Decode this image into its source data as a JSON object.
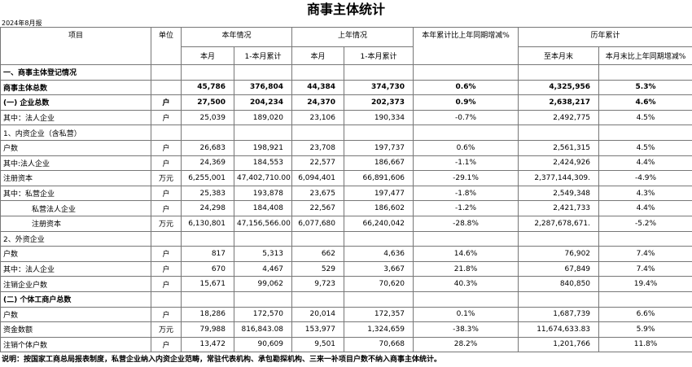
{
  "title": "商事主体统计",
  "report_period": "2024年8月报",
  "header": {
    "top": [
      "项目",
      "单位",
      "本年情况",
      "上年情况",
      "本年累计比上年同期增减%",
      "历年累计"
    ],
    "sub": [
      "本月",
      "1-本月累计",
      "本月",
      "1-本月累计",
      "至本月末",
      "本月末比上年同期增减%"
    ]
  },
  "rows": [
    [
      "一、商事主体登记情况"
    ],
    [
      "商事主体总数",
      null,
      "45,786",
      "376,804",
      "44,384",
      "374,730",
      "0.6%",
      "4,325,956",
      "5.3%"
    ],
    [
      "(一) 企业总数",
      "户",
      "27,500",
      "204,234",
      "24,370",
      "202,373",
      "0.9%",
      "2,638,217",
      "4.6%"
    ],
    [
      "其中：法人企业",
      "户",
      "25,039",
      "189,020",
      "23,106",
      "190,334",
      "-0.7%",
      "2,492,775",
      "4.5%"
    ],
    [
      "1、内资企业（含私营）"
    ],
    [
      "户数",
      "户",
      "26,683",
      "198,921",
      "23,708",
      "197,737",
      "0.6%",
      "2,561,315",
      "4.5%"
    ],
    [
      "其中:法人企业",
      "户",
      "24,369",
      "184,553",
      "22,577",
      "186,667",
      "-1.1%",
      "2,424,926",
      "4.4%"
    ],
    [
      "注册资本",
      "万元",
      "6,255,001",
      "47,402,710.00",
      "6,094,401",
      "66,891,606",
      "-29.1%",
      "2,377,144,309.",
      "-4.9%"
    ],
    [
      "其中：私营企业",
      "户",
      "25,383",
      "193,878",
      "23,675",
      "197,477",
      "-1.8%",
      "2,549,348",
      "4.3%"
    ],
    [
      "私营法人企业",
      "户",
      "24,298",
      "184,408",
      "22,567",
      "186,602",
      "-1.2%",
      "2,421,733",
      "4.4%"
    ],
    [
      "注册资本",
      "万元",
      "6,130,801",
      "47,156,566.00",
      "6,077,680",
      "66,240,042",
      "-28.8%",
      "2,287,678,671.",
      "-5.2%"
    ],
    [
      "2、外资企业"
    ],
    [
      "户数",
      "户",
      "817",
      "5,313",
      "662",
      "4,636",
      "14.6%",
      "76,902",
      "7.4%"
    ],
    [
      "其中：法人企业",
      "户",
      "670",
      "4,467",
      "529",
      "3,667",
      "21.8%",
      "67,849",
      "7.4%"
    ],
    [
      "注销企业户数",
      "户",
      "15,671",
      "99,062",
      "9,723",
      "70,620",
      "40.3%",
      "840,850",
      "19.4%"
    ],
    [
      "(二) 个体工商户总数"
    ],
    [
      "户数",
      "户",
      "18,286",
      "172,570",
      "20,014",
      "172,357",
      "0.1%",
      "1,687,739",
      "6.6%"
    ],
    [
      "资金数额",
      "万元",
      "79,988",
      "816,843.08",
      "153,977",
      "1,324,659",
      "-38.3%",
      "11,674,633.83",
      "5.9%"
    ],
    [
      "注销个体户数",
      "户",
      "13,472",
      "90,609",
      "9,501",
      "70,668",
      "28.2%",
      "1,201,766",
      "11.8%"
    ]
  ],
  "note": "说明：按国家工商总局报表制度，私营企业纳入内资企业范畴，常驻代表机构、承包勘探机构、三来一补项目户数不纳入商事主体统计。"
}
